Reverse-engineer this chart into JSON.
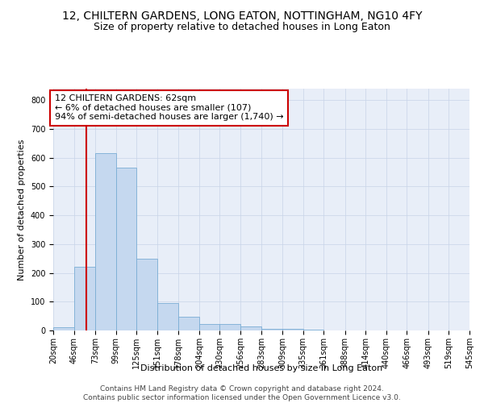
{
  "title": "12, CHILTERN GARDENS, LONG EATON, NOTTINGHAM, NG10 4FY",
  "subtitle": "Size of property relative to detached houses in Long Eaton",
  "xlabel": "Distribution of detached houses by size in Long Eaton",
  "ylabel": "Number of detached properties",
  "bar_color": "#c5d8ef",
  "bar_edge_color": "#7aadd4",
  "grid_color": "#c8d4e8",
  "facecolor": "#e8eef8",
  "annotation_box_color": "#cc0000",
  "property_line_color": "#cc0000",
  "property_value": 62,
  "annotation_text": "12 CHILTERN GARDENS: 62sqm\n← 6% of detached houses are smaller (107)\n94% of semi-detached houses are larger (1,740) →",
  "bins": [
    20,
    46,
    73,
    99,
    125,
    151,
    178,
    204,
    230,
    256,
    283,
    309,
    335,
    361,
    388,
    414,
    440,
    466,
    493,
    519,
    545
  ],
  "bar_heights": [
    10,
    222,
    617,
    565,
    249,
    95,
    48,
    22,
    22,
    14,
    7,
    5,
    3,
    1,
    1,
    0,
    0,
    0,
    0,
    0
  ],
  "ylim": [
    0,
    840
  ],
  "yticks": [
    0,
    100,
    200,
    300,
    400,
    500,
    600,
    700,
    800
  ],
  "footer_text": "Contains HM Land Registry data © Crown copyright and database right 2024.\nContains public sector information licensed under the Open Government Licence v3.0.",
  "title_fontsize": 10,
  "subtitle_fontsize": 9,
  "axis_label_fontsize": 8,
  "tick_fontsize": 7,
  "annotation_fontsize": 8,
  "footer_fontsize": 6.5,
  "ylabel_fontsize": 8
}
